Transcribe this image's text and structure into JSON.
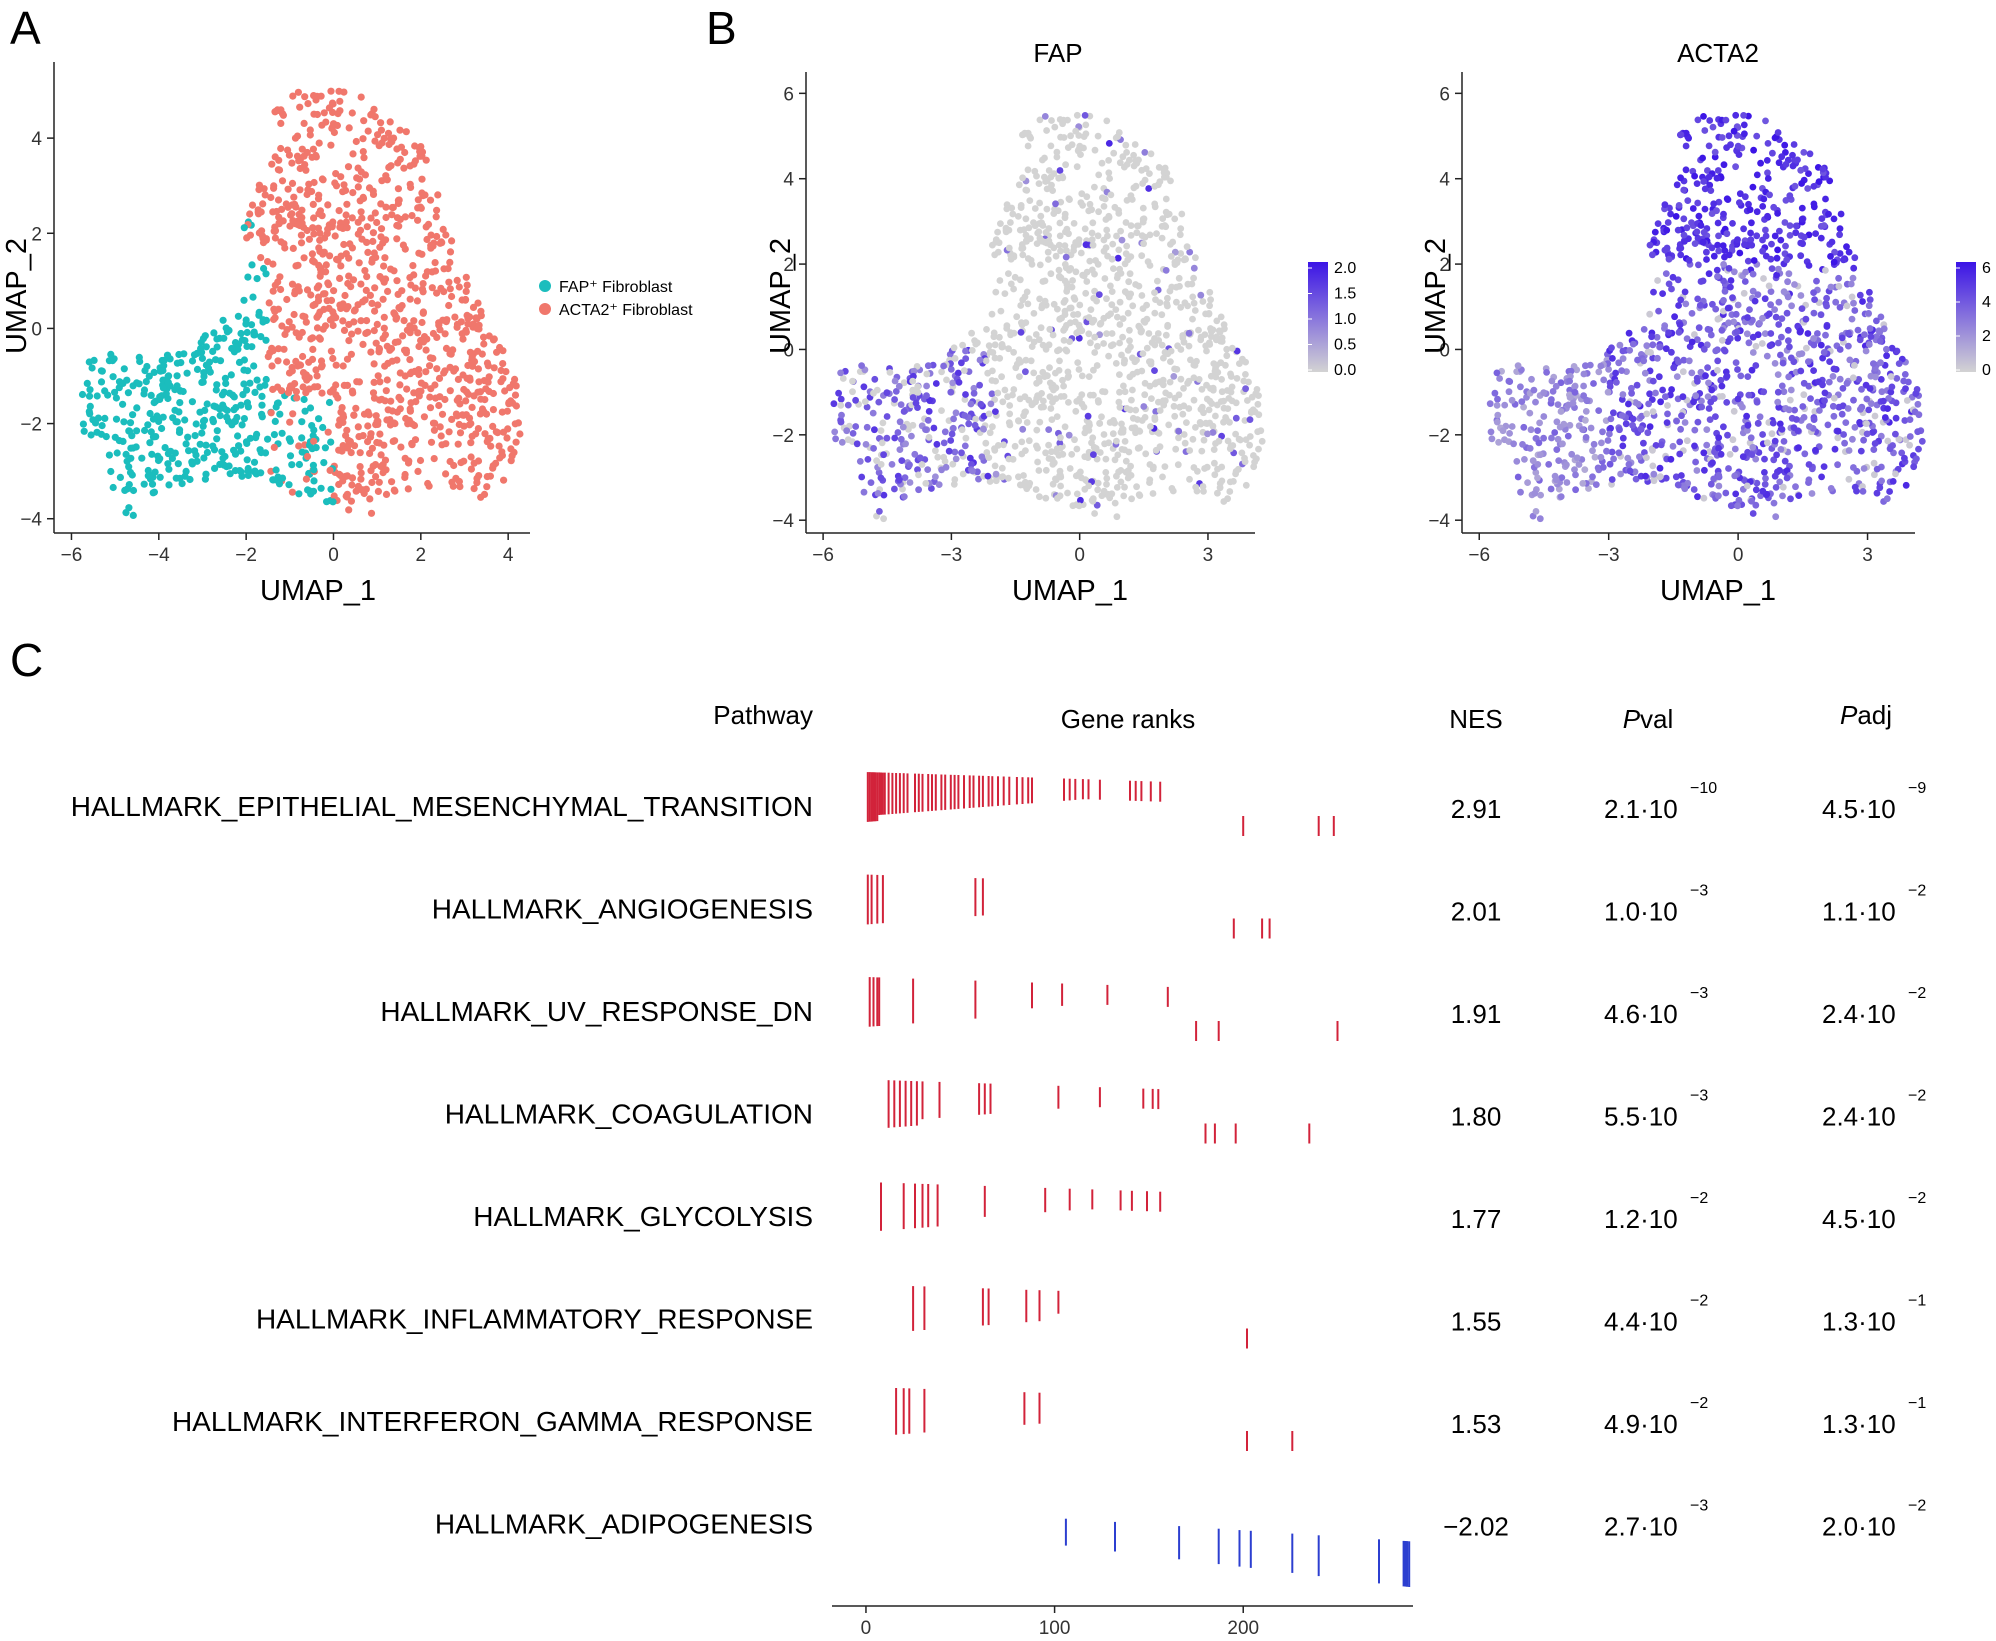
{
  "panels": {
    "A": "A",
    "B": "B",
    "C": "C"
  },
  "colors": {
    "fap": "#1bbdbd",
    "acta2": "#f0776c",
    "low": "#d3d3d3",
    "high": "#3b14e6",
    "rank_pos": "#d2233a",
    "rank_neg": "#2c3fd0"
  },
  "umap_a": {
    "xlabel": "UMAP_1",
    "ylabel": "UMAP_2",
    "xticks": [
      -6,
      -4,
      -2,
      0,
      2,
      4
    ],
    "yticks": [
      -4,
      -2,
      0,
      2,
      4
    ],
    "xlim": [
      -6.4,
      4.5
    ],
    "ylim": [
      -4.3,
      5.6
    ],
    "legend": [
      {
        "label": "FAP⁺ Fibroblast",
        "color": "#1bbdbd"
      },
      {
        "label": "ACTA2⁺ Fibroblast",
        "color": "#f0776c"
      }
    ]
  },
  "umap_b": [
    {
      "title": "FAP",
      "xlabel": "UMAP_1",
      "ylabel": "UMAP_2",
      "xticks": [
        -6,
        -3,
        0,
        3
      ],
      "yticks": [
        -4,
        -2,
        0,
        2,
        4,
        6
      ],
      "colorbar_ticks": [
        "2.0",
        "1.5",
        "1.0",
        "0.5",
        "0.0"
      ]
    },
    {
      "title": "ACTA2",
      "xlabel": "UMAP_1",
      "ylabel": "UMAP_2",
      "xticks": [
        -6,
        -3,
        0,
        3
      ],
      "yticks": [
        -4,
        -2,
        0,
        2,
        4,
        6
      ],
      "colorbar_ticks": [
        "6",
        "4",
        "2",
        "0"
      ]
    }
  ],
  "gsea": {
    "headers": {
      "pathway": "Pathway",
      "ranks": "Gene ranks",
      "nes": "NES",
      "pval": "Pval",
      "padj": "Padj"
    },
    "header_italic": {
      "pval": "P",
      "padj": "P"
    },
    "header_rest": {
      "pval": "val",
      "padj": "adj"
    },
    "xaxis_ticks": [
      "0",
      "100",
      "200"
    ],
    "rows": [
      {
        "pathway": "HALLMARK_EPITHELIAL_MESENCHYMAL_TRANSITION",
        "nes": "2.91",
        "pval_m": "2.1·10",
        "pval_e": "−10",
        "padj_m": "4.5·10",
        "padj_e": "−9"
      },
      {
        "pathway": "HALLMARK_ANGIOGENESIS",
        "nes": "2.01",
        "pval_m": "1.0·10",
        "pval_e": "−3",
        "padj_m": "1.1·10",
        "padj_e": "−2"
      },
      {
        "pathway": "HALLMARK_UV_RESPONSE_DN",
        "nes": "1.91",
        "pval_m": "4.6·10",
        "pval_e": "−3",
        "padj_m": "2.4·10",
        "padj_e": "−2"
      },
      {
        "pathway": "HALLMARK_COAGULATION",
        "nes": "1.80",
        "pval_m": "5.5·10",
        "pval_e": "−3",
        "padj_m": "2.4·10",
        "padj_e": "−2"
      },
      {
        "pathway": "HALLMARK_GLYCOLYSIS",
        "nes": "1.77",
        "pval_m": "1.2·10",
        "pval_e": "−2",
        "padj_m": "4.5·10",
        "padj_e": "−2"
      },
      {
        "pathway": "HALLMARK_INFLAMMATORY_RESPONSE",
        "nes": "1.55",
        "pval_m": "4.4·10",
        "pval_e": "−2",
        "padj_m": "1.3·10",
        "padj_e": "−1"
      },
      {
        "pathway": "HALLMARK_INTERFERON_GAMMA_RESPONSE",
        "nes": "1.53",
        "pval_m": "4.9·10",
        "pval_e": "−2",
        "padj_m": "1.3·10",
        "padj_e": "−1"
      },
      {
        "pathway": "HALLMARK_ADIPOGENESIS",
        "nes": "−2.02",
        "pval_m": "2.7·10",
        "pval_e": "−3",
        "padj_m": "2.0·10",
        "padj_e": "−2"
      }
    ]
  },
  "chart_data": [
    {
      "type": "scatter",
      "title": "",
      "xlabel": "UMAP_1",
      "ylabel": "UMAP_2",
      "xlim": [
        -6.4,
        4.5
      ],
      "ylim": [
        -4.3,
        5.6
      ],
      "series": [
        {
          "name": "FAP⁺ Fibroblast",
          "color": "#1bbdbd",
          "region": "left lobe, x -6 to 0, y -4 to 1"
        },
        {
          "name": "ACTA2⁺ Fibroblast",
          "color": "#f0776c",
          "region": "right body, x -2 to 4.2, y -4 to 5.2"
        }
      ]
    },
    {
      "type": "scatter",
      "title": "FAP",
      "xlabel": "UMAP_1",
      "ylabel": "UMAP_2",
      "xlim": [
        -6.4,
        4.1
      ],
      "ylim": [
        -4.3,
        6.5
      ],
      "color_range": [
        0,
        2.2
      ]
    },
    {
      "type": "scatter",
      "title": "ACTA2",
      "xlabel": "UMAP_1",
      "ylabel": "UMAP_2",
      "xlim": [
        -6.4,
        4.1
      ],
      "ylim": [
        -4.3,
        6.5
      ],
      "color_range": [
        0,
        6.5
      ]
    },
    {
      "type": "table",
      "title": "Gene ranks",
      "xlim": [
        -18,
        290
      ],
      "rank_ticks": [
        [
          1,
          2,
          3,
          4,
          5,
          6,
          7,
          8,
          9,
          10,
          12,
          14,
          16,
          18,
          20,
          22,
          26,
          28,
          30,
          33,
          35,
          37,
          40,
          42,
          45,
          47,
          49,
          52,
          55,
          57,
          60,
          62,
          65,
          67,
          70,
          73,
          76,
          80,
          83,
          86,
          88,
          105,
          108,
          111,
          115,
          118,
          124,
          140,
          143,
          146,
          151,
          156,
          200,
          240,
          248
        ],
        [
          1,
          3,
          6,
          9,
          58,
          62,
          195,
          210,
          214
        ],
        [
          2,
          4,
          6,
          7,
          25,
          58,
          88,
          104,
          128,
          160,
          175,
          187,
          250
        ],
        [
          12,
          15,
          18,
          21,
          24,
          27,
          30,
          39,
          60,
          63,
          66,
          102,
          124,
          147,
          152,
          155,
          180,
          185,
          196,
          235
        ],
        [
          8,
          20,
          26,
          30,
          33,
          38,
          63,
          95,
          108,
          120,
          135,
          141,
          149,
          156
        ],
        [
          25,
          31,
          62,
          65,
          85,
          92,
          102,
          202
        ],
        [
          16,
          20,
          23,
          31,
          84,
          92,
          202,
          226
        ],
        [
          106,
          132,
          166,
          187,
          198,
          204,
          226,
          240,
          272,
          285,
          286,
          287,
          288
        ]
      ]
    }
  ]
}
